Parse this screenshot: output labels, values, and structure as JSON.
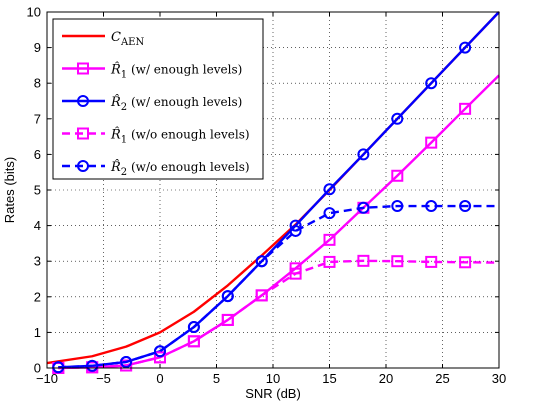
{
  "chart_data": {
    "type": "line",
    "xlabel": "SNR (dB)",
    "ylabel": "Rates (bits)",
    "xlim": [
      -10,
      30
    ],
    "ylim": [
      0,
      10
    ],
    "xticks": [
      -10,
      -5,
      0,
      5,
      10,
      15,
      20,
      25,
      30
    ],
    "yticks": [
      0,
      1,
      2,
      3,
      4,
      5,
      6,
      7,
      8,
      9,
      10
    ],
    "xtick_labels": [
      "−10",
      "−5",
      "0",
      "5",
      "10",
      "15",
      "20",
      "25",
      "30"
    ],
    "ytick_labels": [
      "0",
      "1",
      "2",
      "3",
      "4",
      "5",
      "6",
      "7",
      "8",
      "9",
      "10"
    ],
    "grid": true,
    "legend_position": "top-left",
    "series": [
      {
        "name": "C_AEN",
        "label_main": "C",
        "label_sub": "AEN",
        "color": "#ff0000",
        "dash": "solid",
        "marker": "none",
        "x": [
          -10,
          -6,
          -3,
          0,
          3,
          6,
          9,
          12,
          15,
          18,
          21,
          24,
          27,
          30
        ],
        "y": [
          0.14,
          0.33,
          0.6,
          1.0,
          1.58,
          2.32,
          3.16,
          4.03,
          5.0,
          6.0,
          7.0,
          8.0,
          9.0,
          10.0
        ]
      },
      {
        "name": "R̂1 (w/ enough levels)",
        "label_main": "R̂",
        "label_sub": "1",
        "label_rest": " (w/ enough levels)",
        "color": "#ff00ff",
        "dash": "solid",
        "marker": "square",
        "x": [
          -9,
          -6,
          -3,
          0,
          3,
          6,
          9,
          12,
          15,
          18,
          21,
          24,
          27,
          30
        ],
        "y": [
          0.0,
          0.02,
          0.07,
          0.3,
          0.75,
          1.35,
          2.04,
          2.8,
          3.6,
          4.5,
          5.4,
          6.33,
          7.28,
          8.22
        ],
        "marker_every_except_last": true
      },
      {
        "name": "R̂2 (w/ enough levels)",
        "label_main": "R̂",
        "label_sub": "2",
        "label_rest": " (w/ enough levels)",
        "color": "#0000ff",
        "dash": "solid",
        "marker": "circle",
        "x": [
          -9,
          -6,
          -3,
          0,
          3,
          6,
          9,
          12,
          15,
          18,
          21,
          24,
          27,
          30
        ],
        "y": [
          0.02,
          0.06,
          0.17,
          0.47,
          1.15,
          2.02,
          3.0,
          4.0,
          5.02,
          6.0,
          7.0,
          8.0,
          9.0,
          10.0
        ],
        "marker_every_except_last": true
      },
      {
        "name": "R̂1 (w/o enough levels)",
        "label_main": "R̂",
        "label_sub": "1",
        "label_rest": " (w/o enough levels)",
        "color": "#ff00ff",
        "dash": "dashed",
        "marker": "square",
        "x": [
          -9,
          -6,
          -3,
          0,
          3,
          6,
          9,
          12,
          15,
          18,
          21,
          24,
          27,
          30
        ],
        "y": [
          0.0,
          0.02,
          0.07,
          0.3,
          0.75,
          1.35,
          2.04,
          2.65,
          2.98,
          3.01,
          3.0,
          2.98,
          2.97,
          2.96
        ],
        "marker_every_except_last": true
      },
      {
        "name": "R̂2 (w/o enough levels)",
        "label_main": "R̂",
        "label_sub": "2",
        "label_rest": " (w/o enough levels)",
        "color": "#0000ff",
        "dash": "dashed",
        "marker": "circle",
        "x": [
          -9,
          -6,
          -3,
          0,
          3,
          6,
          9,
          12,
          15,
          18,
          21,
          24,
          27,
          30
        ],
        "y": [
          0.02,
          0.06,
          0.17,
          0.47,
          1.15,
          2.02,
          3.0,
          3.85,
          4.35,
          4.5,
          4.55,
          4.55,
          4.55,
          4.55
        ],
        "marker_every_except_last": true
      }
    ]
  }
}
